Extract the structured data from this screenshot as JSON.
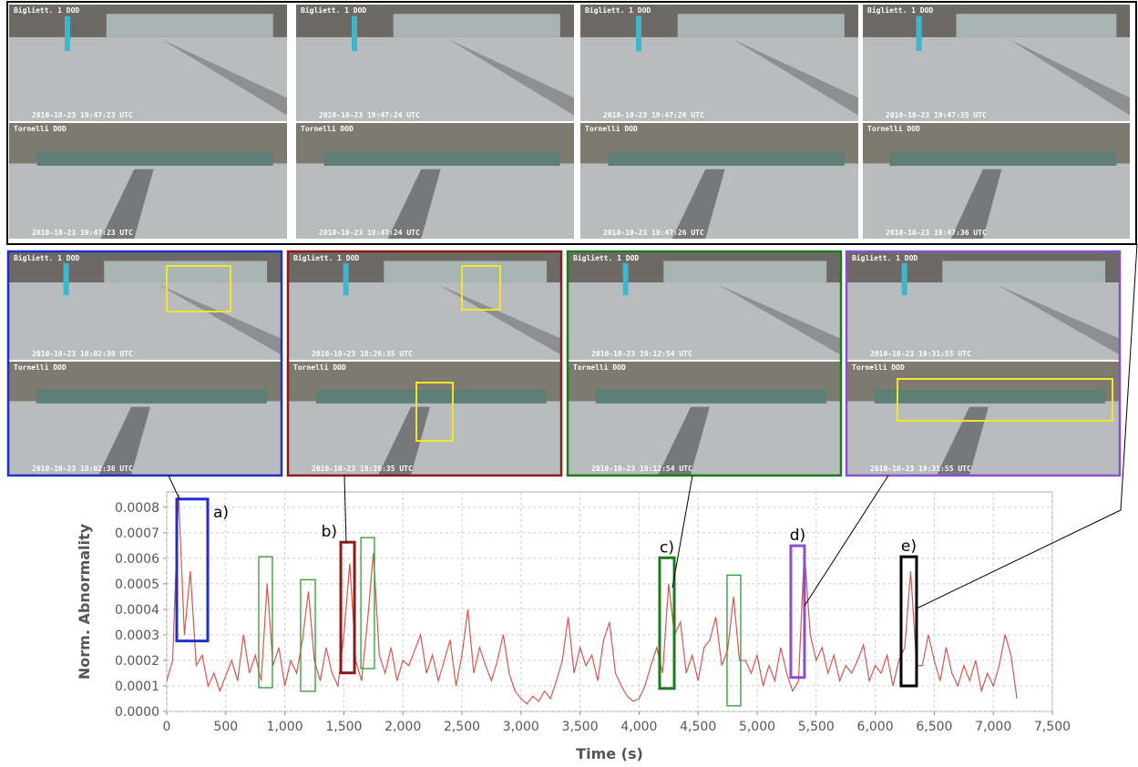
{
  "top_row": {
    "frames": [
      {
        "upper": {
          "camera": "Bigliett. 1 DOD",
          "time": "2010-10-23 19:47:23 UTC"
        },
        "lower": {
          "camera": "Tornelli DOD",
          "time": "2010-10-23 19:47:23 UTC"
        }
      },
      {
        "upper": {
          "camera": "Bigliett. 1 DOD",
          "time": "2010-10-23 19:47:24 UTC"
        },
        "lower": {
          "camera": "Tornelli DOD",
          "time": "2010-10-23 19:47:24 UTC"
        }
      },
      {
        "upper": {
          "camera": "Bigliett. 1 DOD",
          "time": "2010-10-23 19:47:26 UTC"
        },
        "lower": {
          "camera": "Tornelli DOD",
          "time": "2010-10-23 19:47:26 UTC"
        }
      },
      {
        "upper": {
          "camera": "Bigliett. 1 DOD",
          "time": "2010-10-23 19:47:35 UTC"
        },
        "lower": {
          "camera": "Tornelli DOD",
          "time": "2010-10-23 19:47:36 UTC"
        }
      }
    ]
  },
  "examples": {
    "frames": [
      {
        "color": "#1f2fc8",
        "upper": {
          "camera": "Bigliett. 1 DOD",
          "time": "2010-10-23 18:02:38 UTC"
        },
        "lower": {
          "camera": "Tornelli DOD",
          "time": "2010-10-23 18:02:38 UTC"
        }
      },
      {
        "color": "#8b1a1a",
        "upper": {
          "camera": "Bigliett. 1 DOD",
          "time": "2010-10-23 18:26:35 UTC"
        },
        "lower": {
          "camera": "Tornelli DOD",
          "time": "2010-10-23 18:26:35 UTC"
        }
      },
      {
        "color": "#1d7a1d",
        "upper": {
          "camera": "Bigliett. 1 DOD",
          "time": "2010-10-23 19:12:54 UTC"
        },
        "lower": {
          "camera": "Tornelli DOD",
          "time": "2010-10-23 19:12:54 UTC"
        }
      },
      {
        "color": "#8a4fd0",
        "upper": {
          "camera": "Bigliett. 1 DOD",
          "time": "2010-10-23 19:31:55 UTC"
        },
        "lower": {
          "camera": "Tornelli DOD",
          "time": "2010-10-23 19:31:55 UTC"
        }
      }
    ]
  },
  "chart_data": {
    "type": "line",
    "x_label": "Time (s)",
    "y_label": "Norm. Abnormality",
    "grid": true,
    "xlim": [
      0,
      7500
    ],
    "ylim": [
      0,
      0.00086
    ],
    "xticks": [
      0,
      500,
      {
        "value": 1000,
        "label": "1,000"
      },
      {
        "value": 1500,
        "label": "1,500"
      },
      {
        "value": 2000,
        "label": "2,000"
      },
      {
        "value": 2500,
        "label": "2,500"
      },
      {
        "value": 3000,
        "label": "3,000"
      },
      {
        "value": 3500,
        "label": "3,500"
      },
      {
        "value": 4000,
        "label": "4,000"
      },
      {
        "value": 4500,
        "label": "4,500"
      },
      {
        "value": 5000,
        "label": "5,000"
      },
      {
        "value": 5500,
        "label": "5,500"
      },
      {
        "value": 6000,
        "label": "6,000"
      },
      {
        "value": 6500,
        "label": "6,500"
      },
      {
        "value": 7000,
        "label": "7,000"
      },
      {
        "value": 7500,
        "label": "7,500"
      }
    ],
    "yticks": [
      {
        "value": 0,
        "label": "0.0000"
      },
      {
        "value": 0.0001,
        "label": "0.0001"
      },
      {
        "value": 0.0002,
        "label": "0.0002"
      },
      {
        "value": 0.0003,
        "label": "0.0003"
      },
      {
        "value": 0.0004,
        "label": "0.0004"
      },
      {
        "value": 0.0005,
        "label": "0.0005"
      },
      {
        "value": 0.0006,
        "label": "0.0006"
      },
      {
        "value": 0.0007,
        "label": "0.0007"
      },
      {
        "value": 0.0008,
        "label": "0.0008"
      }
    ],
    "x": [
      0,
      50,
      100,
      150,
      200,
      250,
      300,
      350,
      400,
      450,
      500,
      550,
      600,
      650,
      700,
      750,
      800,
      850,
      900,
      950,
      1000,
      1050,
      1100,
      1150,
      1200,
      1250,
      1300,
      1350,
      1400,
      1450,
      1500,
      1550,
      1600,
      1650,
      1700,
      1750,
      1800,
      1850,
      1900,
      1950,
      2000,
      2050,
      2100,
      2150,
      2200,
      2250,
      2300,
      2350,
      2400,
      2450,
      2500,
      2550,
      2600,
      2650,
      2700,
      2750,
      2800,
      2850,
      2900,
      2950,
      3000,
      3050,
      3100,
      3150,
      3200,
      3250,
      3300,
      3350,
      3400,
      3450,
      3500,
      3550,
      3600,
      3650,
      3700,
      3750,
      3800,
      3850,
      3900,
      3950,
      4000,
      4050,
      4100,
      4150,
      4200,
      4250,
      4300,
      4350,
      4400,
      4450,
      4500,
      4550,
      4600,
      4650,
      4700,
      4750,
      4800,
      4850,
      4900,
      4950,
      5000,
      5050,
      5100,
      5150,
      5200,
      5250,
      5300,
      5350,
      5400,
      5450,
      5500,
      5550,
      5600,
      5650,
      5700,
      5750,
      5800,
      5850,
      5900,
      5950,
      6000,
      6050,
      6100,
      6150,
      6200,
      6250,
      6300,
      6350,
      6400,
      6450,
      6500,
      6550,
      6600,
      6650,
      6700,
      6750,
      6800,
      6850,
      6900,
      6950,
      7000,
      7050,
      7100,
      7150,
      7200
    ],
    "series": [
      {
        "color": "#d4574f",
        "values": [
          0.00012,
          0.0002,
          0.00085,
          0.0003,
          0.00055,
          0.00018,
          0.00022,
          0.0001,
          0.00015,
          8e-05,
          0.00014,
          0.0002,
          0.00012,
          0.0003,
          0.00015,
          0.00022,
          0.00012,
          0.0005,
          0.00018,
          0.00025,
          0.0001,
          0.0002,
          0.00015,
          0.00028,
          0.00047,
          0.0002,
          0.00012,
          0.00025,
          0.00015,
          0.0001,
          0.0003,
          0.00058,
          0.0002,
          0.00012,
          0.00035,
          0.00062,
          0.00022,
          0.00015,
          0.00025,
          0.00012,
          0.0002,
          0.00018,
          0.00024,
          0.0003,
          0.00015,
          0.00022,
          0.00012,
          0.0002,
          0.00028,
          0.0001,
          0.00022,
          0.0004,
          0.00015,
          0.00025,
          0.00018,
          0.00012,
          0.0002,
          0.0003,
          0.00015,
          8e-05,
          5e-05,
          3e-05,
          6e-05,
          4e-05,
          8e-05,
          5e-05,
          0.00012,
          0.0002,
          0.00037,
          0.00015,
          0.00025,
          0.00018,
          0.00022,
          0.00012,
          0.00028,
          0.00035,
          0.00015,
          0.0001,
          6e-05,
          4e-05,
          5e-05,
          0.0001,
          0.00018,
          0.00025,
          0.00015,
          0.0005,
          0.0003,
          0.00035,
          0.00015,
          0.00022,
          0.00012,
          0.00025,
          0.00028,
          0.00037,
          0.00018,
          0.00024,
          0.00045,
          0.0002,
          0.0002,
          0.00015,
          0.00022,
          0.0001,
          0.00018,
          0.00012,
          0.00025,
          0.00015,
          8e-05,
          0.00012,
          0.00063,
          0.0003,
          0.0002,
          0.00025,
          0.00015,
          0.00022,
          0.00012,
          0.00018,
          0.00015,
          0.0002,
          0.00026,
          0.00012,
          0.00018,
          0.00015,
          0.00022,
          0.0001,
          0.0002,
          0.00025,
          0.00055,
          0.00018,
          0.00018,
          0.0003,
          0.0002,
          0.00012,
          0.00025,
          0.00015,
          0.0001,
          0.00018,
          0.00012,
          0.0002,
          8e-05,
          0.00015,
          0.0001,
          0.00018,
          0.0003,
          0.00022,
          5e-05
        ]
      }
    ],
    "annotations": [
      {
        "label": "a)",
        "color": "#1f2fc8",
        "x": [
          85,
          347
        ],
        "y": [
          0.000276,
          0.000832
        ]
      },
      {
        "color": "#2e9a2e",
        "x": [
          779,
          895
        ],
        "y": [
          9.3e-05,
          0.000606
        ]
      },
      {
        "color": "#2e9a2e",
        "x": [
          1134,
          1258
        ],
        "y": [
          7.9e-05,
          0.000516
        ]
      },
      {
        "label": "b)",
        "color": "#8b1a1a",
        "x": [
          1474,
          1590
        ],
        "y": [
          0.000151,
          0.000663
        ]
      },
      {
        "color": "#2e9a2e",
        "x": [
          1644,
          1759
        ],
        "y": [
          0.000168,
          0.000681
        ]
      },
      {
        "label": "c)",
        "color": "#1d7a1d",
        "x": [
          4174,
          4298
        ],
        "y": [
          9e-05,
          0.000602
        ]
      },
      {
        "color": "#2e9a2e",
        "x": [
          4745,
          4861
        ],
        "y": [
          2.2e-05,
          0.000534
        ]
      },
      {
        "label": "d)",
        "color": "#8a4fd0",
        "x": [
          5285,
          5401
        ],
        "y": [
          0.000133,
          0.000649
        ]
      },
      {
        "label": "e)",
        "color": "#000000",
        "x": [
          6219,
          6350
        ],
        "y": [
          0.0001,
          0.000606
        ]
      }
    ]
  }
}
